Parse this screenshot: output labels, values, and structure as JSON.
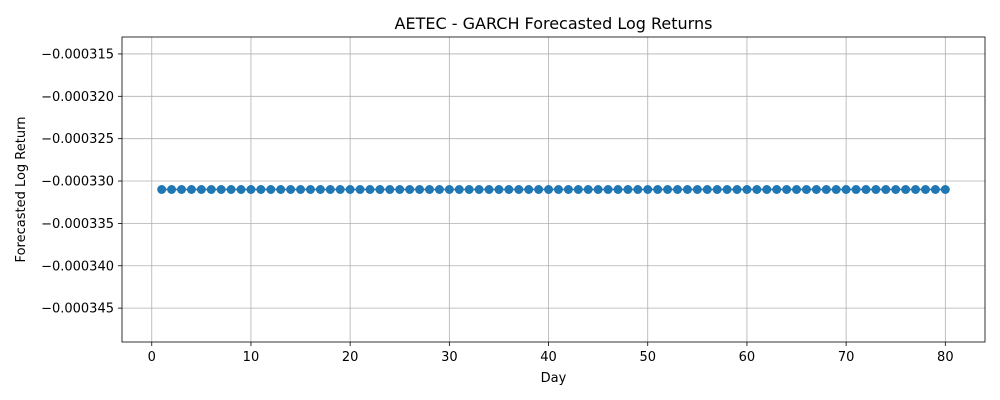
{
  "chart_data": {
    "type": "line",
    "title": "AETEC - GARCH Forecasted Log Returns",
    "xlabel": "Day",
    "ylabel": "Forecasted Log Return",
    "xlim": [
      -3,
      84
    ],
    "ylim": [
      -0.000349,
      -0.000313
    ],
    "xticks": [
      0,
      10,
      20,
      30,
      40,
      50,
      60,
      70,
      80
    ],
    "yticks": [
      -0.000315,
      -0.00032,
      -0.000325,
      -0.00033,
      -0.000335,
      -0.00034,
      -0.000345
    ],
    "ytick_labels": [
      "−0.000315",
      "−0.000320",
      "−0.000325",
      "−0.000330",
      "−0.000335",
      "−0.000340",
      "−0.000345"
    ],
    "grid": true,
    "marker": "circle",
    "color": "#1f77b4",
    "x_start": 1,
    "x_end": 80,
    "constant_value": -0.000331
  }
}
